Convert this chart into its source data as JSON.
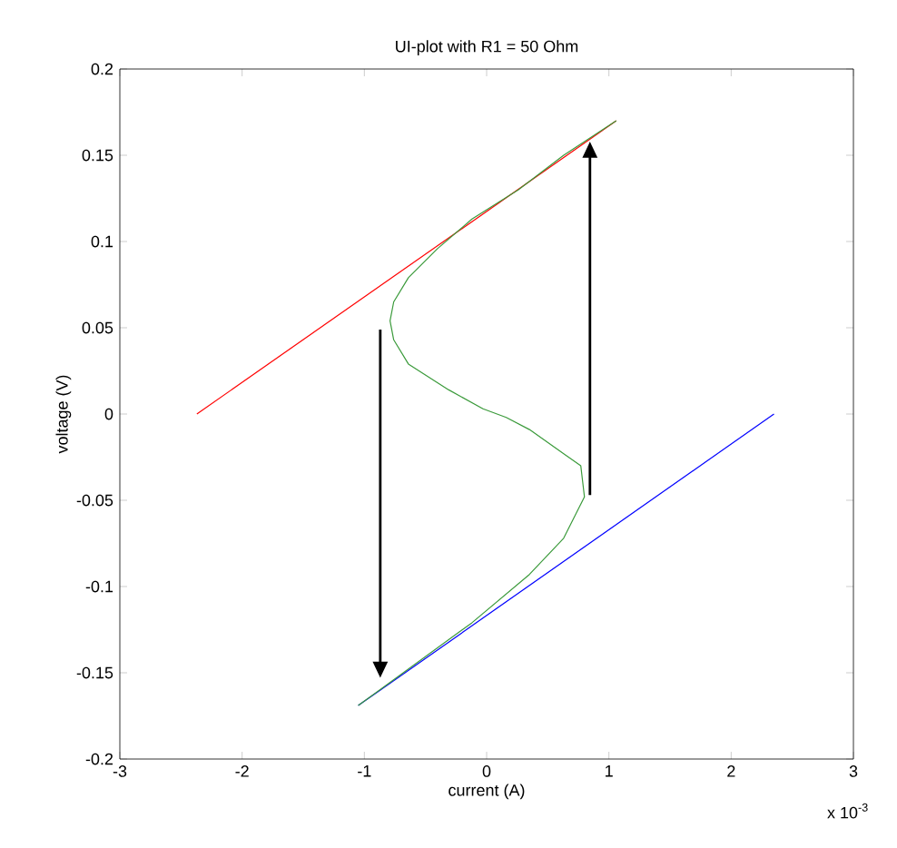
{
  "chart_data": {
    "type": "line",
    "title": "UI-plot with R1 = 50 Ohm",
    "xlabel": "current (A)",
    "ylabel": "voltage (V)",
    "annotations": [
      "x 10$^{-3}$"
    ],
    "series": [
      {
        "color": "#ff0000",
        "x": [
          -2.37,
          1.06
        ],
        "values": [
          0,
          0.17
        ]
      },
      {
        "color": "#0000ff",
        "x": [
          -1.05,
          2.35
        ],
        "values": [
          -0.169,
          0
        ]
      },
      {
        "color": "#3a9a3a",
        "x": [
          -1.05,
          -0.12,
          0.35,
          0.63,
          0.8,
          0.77,
          0.63,
          0.35,
          0.16,
          -0.03,
          -0.31,
          -0.64,
          -0.76,
          -0.79,
          -0.76,
          -0.64,
          -0.4,
          -0.12,
          0.26,
          0.63,
          1.06
        ],
        "values": [
          -0.169,
          -0.121,
          -0.093,
          -0.072,
          -0.048,
          -0.03,
          -0.023,
          -0.009,
          -0.002,
          0.003,
          0.014,
          0.029,
          0.043,
          0.054,
          0.065,
          0.079,
          0.096,
          0.113,
          0.13,
          0.15,
          0.17
        ]
      }
    ],
    "xlim": [
      -3,
      3
    ],
    "xticks": [
      -3,
      -2,
      -1,
      0,
      1,
      2,
      3
    ],
    "ylim": [
      -0.2,
      0.2
    ],
    "yticks": [
      -0.2,
      -0.15,
      -0.1,
      -0.05,
      0,
      0.05,
      0.1,
      0.15,
      0.2
    ],
    "grid": false,
    "marker": "none",
    "line_style": "solid"
  }
}
